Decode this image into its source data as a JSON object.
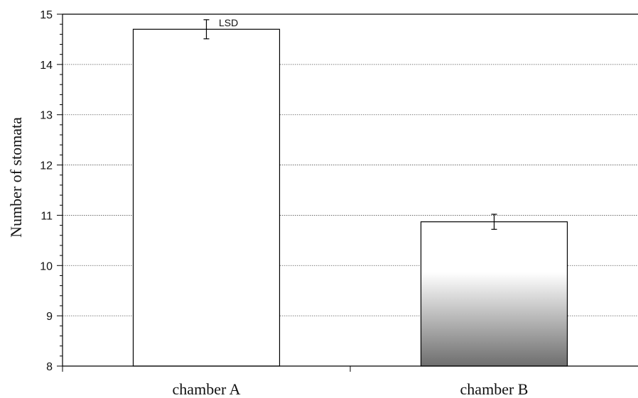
{
  "chart_data": {
    "type": "bar",
    "title": "",
    "xlabel": "",
    "ylabel": "Number of stomata",
    "ylim": [
      8,
      15
    ],
    "yticks": [
      8,
      9,
      10,
      11,
      12,
      13,
      14,
      15
    ],
    "grid": true,
    "categories": [
      "chamber A",
      "chamber B"
    ],
    "values": [
      14.7,
      10.87
    ],
    "error": [
      0.19,
      0.15
    ],
    "bar_fills": [
      "white",
      "white-to-dark-gray gradient"
    ],
    "annotation": "LSD"
  }
}
